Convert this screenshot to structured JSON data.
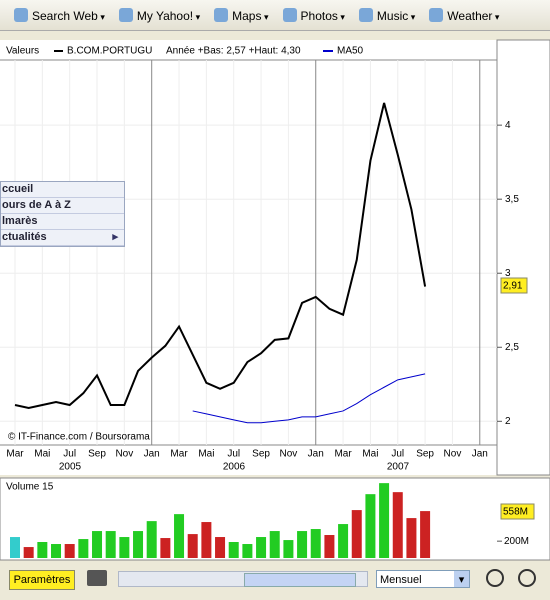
{
  "toolbar": {
    "items": [
      "Search Web",
      "My Yahoo!",
      "Maps",
      "Photos",
      "Music",
      "Weather"
    ]
  },
  "chart_data": [
    {
      "type": "line",
      "legend_label": "Valeurs",
      "stats": "Année +Bas: 2,57 +Haut: 4,30",
      "watermark": "© IT-Finance.com / Boursorama",
      "current_price": "2,91",
      "categories": [
        "Mar",
        null,
        "Mai",
        null,
        "Jul",
        null,
        "Sep",
        null,
        "Nov",
        null,
        "Jan",
        null,
        "Mar",
        null,
        "Mai",
        null,
        "Jul",
        null,
        "Sep",
        null,
        "Nov",
        null,
        "Jan",
        null,
        "Mar",
        null,
        "Mai",
        null,
        "Jul",
        null,
        "Sep",
        null,
        "Nov",
        null,
        "Jan"
      ],
      "years": [
        "2005",
        "2006",
        "2007"
      ],
      "series": [
        {
          "name": "B.COM.PORTUGU",
          "color": "#000000",
          "values": [
            2.11,
            2.09,
            2.11,
            2.13,
            2.11,
            2.19,
            2.31,
            2.11,
            2.11,
            2.34,
            2.43,
            2.51,
            2.64,
            2.45,
            2.26,
            2.22,
            2.26,
            2.4,
            2.46,
            2.55,
            2.56,
            2.8,
            2.84,
            2.76,
            2.72,
            3.09,
            3.76,
            4.15,
            3.8,
            3.43,
            2.91,
            null,
            null,
            null,
            null
          ]
        },
        {
          "name": "MA50",
          "color": "#0000cc",
          "values": [
            null,
            null,
            null,
            null,
            null,
            null,
            null,
            null,
            null,
            null,
            null,
            null,
            null,
            2.07,
            2.05,
            2.03,
            2.01,
            1.99,
            1.99,
            2.0,
            2.01,
            2.03,
            2.03,
            2.05,
            2.07,
            2.12,
            2.18,
            2.23,
            2.28,
            2.3,
            2.32,
            null,
            null,
            null,
            null
          ]
        }
      ],
      "ylim": [
        1.84,
        4.44
      ],
      "yticks": [
        2,
        {
          "value": 2.5,
          "label": "2,5"
        },
        3,
        {
          "value": 3.5,
          "label": "3,5"
        },
        4
      ],
      "grid": true
    },
    {
      "type": "bar",
      "title": "Volume 15",
      "current_volume": "558M",
      "values": [
        249,
        130,
        190,
        166,
        166,
        225,
        320,
        320,
        249,
        320,
        438,
        237,
        521,
        284,
        427,
        249,
        190,
        166,
        249,
        320,
        213,
        320,
        344,
        273,
        403,
        569,
        758,
        889,
        782,
        474,
        557
      ],
      "colors": [
        "#33cccc",
        "#cc2222",
        "#22cc22",
        "#22cc22",
        "#cc2222",
        "#22cc22",
        "#22cc22",
        "#22cc22",
        "#22cc22",
        "#22cc22",
        "#22cc22",
        "#cc2222",
        "#22cc22",
        "#cc2222",
        "#cc2222",
        "#cc2222",
        "#22cc22",
        "#22cc22",
        "#22cc22",
        "#22cc22",
        "#22cc22",
        "#22cc22",
        "#22cc22",
        "#cc2222",
        "#22cc22",
        "#cc2222",
        "#22cc22",
        "#22cc22",
        "#cc2222",
        "#cc2222",
        "#cc2222"
      ],
      "ylim": [
        0,
        950
      ],
      "yticks": [
        {
          "value": 200,
          "label": "200M"
        }
      ]
    }
  ],
  "menu": {
    "items": [
      "ccueil",
      "ours de A à Z",
      "lmarès",
      "ctualités"
    ]
  },
  "controls": {
    "button": "Paramètres",
    "period": "Mensuel"
  }
}
